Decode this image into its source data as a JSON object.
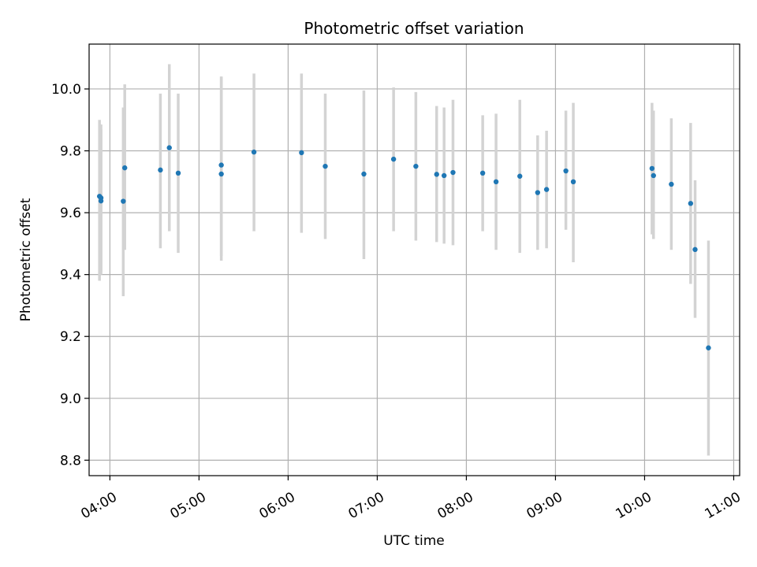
{
  "chart_data": {
    "type": "scatter",
    "title": "Photometric offset variation",
    "xlabel": "UTC time",
    "ylabel": "Photometric offset",
    "x_unit": "UTC HH:MM",
    "xlim": [
      "03:46",
      "11:04"
    ],
    "ylim": [
      8.75,
      10.145
    ],
    "x_ticks": [
      "04:00",
      "05:00",
      "06:00",
      "07:00",
      "08:00",
      "09:00",
      "10:00",
      "11:00"
    ],
    "y_ticks": [
      8.8,
      9.0,
      9.2,
      9.4,
      9.6,
      9.8,
      10.0
    ],
    "y_tick_labels": [
      "8.8",
      "9.0",
      "9.2",
      "9.4",
      "9.6",
      "9.8",
      "10.0"
    ],
    "grid": true,
    "legend": "none",
    "colors": {
      "points": "#1f77b4",
      "error_bars": "#d3d3d3",
      "grid": "#b0b0b0"
    },
    "series": [
      {
        "x": [
          "03:53",
          "03:54",
          "03:54",
          "04:09",
          "04:10",
          "04:34",
          "04:40",
          "04:46",
          "05:15",
          "05:15",
          "05:37",
          "06:09",
          "06:25",
          "06:51",
          "07:11",
          "07:26",
          "07:40",
          "07:45",
          "07:51",
          "08:11",
          "08:20",
          "08:36",
          "08:48",
          "08:54",
          "09:07",
          "09:12",
          "10:05",
          "10:06",
          "10:18",
          "10:31",
          "10:34",
          "10:43"
        ],
        "y": [
          9.653,
          9.638,
          9.648,
          9.637,
          9.745,
          9.738,
          9.81,
          9.728,
          9.754,
          9.725,
          9.796,
          9.794,
          9.75,
          9.725,
          9.773,
          9.75,
          9.724,
          9.72,
          9.73,
          9.728,
          9.7,
          9.718,
          9.665,
          9.675,
          9.735,
          9.7,
          9.743,
          9.72,
          9.692,
          9.63,
          9.481,
          9.163
        ],
        "y_low": [
          9.38,
          9.41,
          9.4,
          9.33,
          9.48,
          9.485,
          9.54,
          9.47,
          9.46,
          9.445,
          9.54,
          9.535,
          9.515,
          9.45,
          9.54,
          9.51,
          9.505,
          9.5,
          9.495,
          9.54,
          9.48,
          9.47,
          9.48,
          9.485,
          9.545,
          9.44,
          9.53,
          9.515,
          9.48,
          9.37,
          9.26,
          8.815
        ],
        "y_high": [
          9.9,
          9.87,
          9.885,
          9.94,
          10.015,
          9.985,
          10.08,
          9.985,
          10.04,
          10.04,
          10.05,
          10.05,
          9.985,
          9.995,
          10.005,
          9.99,
          9.945,
          9.94,
          9.965,
          9.915,
          9.92,
          9.965,
          9.85,
          9.865,
          9.93,
          9.955,
          9.955,
          9.93,
          9.905,
          9.89,
          9.705,
          9.51
        ]
      }
    ]
  }
}
